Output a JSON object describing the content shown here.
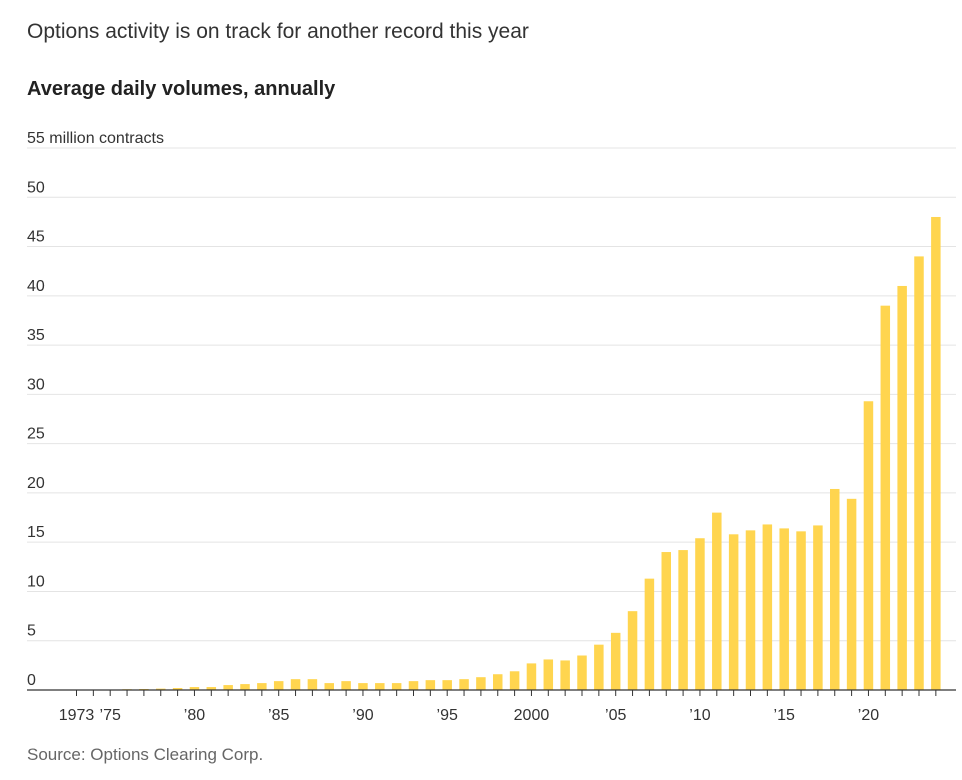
{
  "headline": "Options activity is on track for another record this year",
  "source": "Source: Options Clearing Corp.",
  "colors": {
    "bar": "#ffd54f",
    "grid": "#e4e4e4",
    "axis": "#333333"
  },
  "chart_data": {
    "type": "bar",
    "title": "Average daily volumes, annually",
    "ylabel": "55 million contracts",
    "ylim": [
      0,
      55
    ],
    "grid": true,
    "y_ticks": [
      0,
      5,
      10,
      15,
      20,
      25,
      30,
      35,
      40,
      45,
      50
    ],
    "y_tick_labels": [
      "0",
      "5",
      "10",
      "15",
      "20",
      "25",
      "30",
      "35",
      "40",
      "45",
      "50"
    ],
    "x_tick_labels": [
      {
        "year": 1973,
        "label": "1973"
      },
      {
        "year": 1975,
        "label": "’75"
      },
      {
        "year": 1980,
        "label": "’80"
      },
      {
        "year": 1985,
        "label": "’85"
      },
      {
        "year": 1990,
        "label": "’90"
      },
      {
        "year": 1995,
        "label": "’95"
      },
      {
        "year": 2000,
        "label": "2000"
      },
      {
        "year": 2005,
        "label": "’05"
      },
      {
        "year": 2010,
        "label": "’10"
      },
      {
        "year": 2015,
        "label": "’15"
      },
      {
        "year": 2020,
        "label": "’20"
      }
    ],
    "categories": [
      1973,
      1974,
      1975,
      1976,
      1977,
      1978,
      1979,
      1980,
      1981,
      1982,
      1983,
      1984,
      1985,
      1986,
      1987,
      1988,
      1989,
      1990,
      1991,
      1992,
      1993,
      1994,
      1995,
      1996,
      1997,
      1998,
      1999,
      2000,
      2001,
      2002,
      2003,
      2004,
      2005,
      2006,
      2007,
      2008,
      2009,
      2010,
      2011,
      2012,
      2013,
      2014,
      2015,
      2016,
      2017,
      2018,
      2019,
      2020,
      2021,
      2022,
      2023,
      2024
    ],
    "values": [
      0.0,
      0.02,
      0.04,
      0.08,
      0.1,
      0.14,
      0.2,
      0.3,
      0.3,
      0.5,
      0.6,
      0.7,
      0.9,
      1.1,
      1.1,
      0.7,
      0.9,
      0.7,
      0.7,
      0.7,
      0.9,
      1.0,
      1.0,
      1.1,
      1.3,
      1.6,
      1.9,
      2.7,
      3.1,
      3.0,
      3.5,
      4.6,
      5.8,
      8.0,
      11.3,
      14.0,
      14.2,
      15.4,
      18.0,
      15.8,
      16.2,
      16.8,
      16.4,
      16.1,
      16.7,
      20.4,
      19.4,
      29.3,
      39.0,
      41.0,
      44.0,
      48.0
    ]
  }
}
